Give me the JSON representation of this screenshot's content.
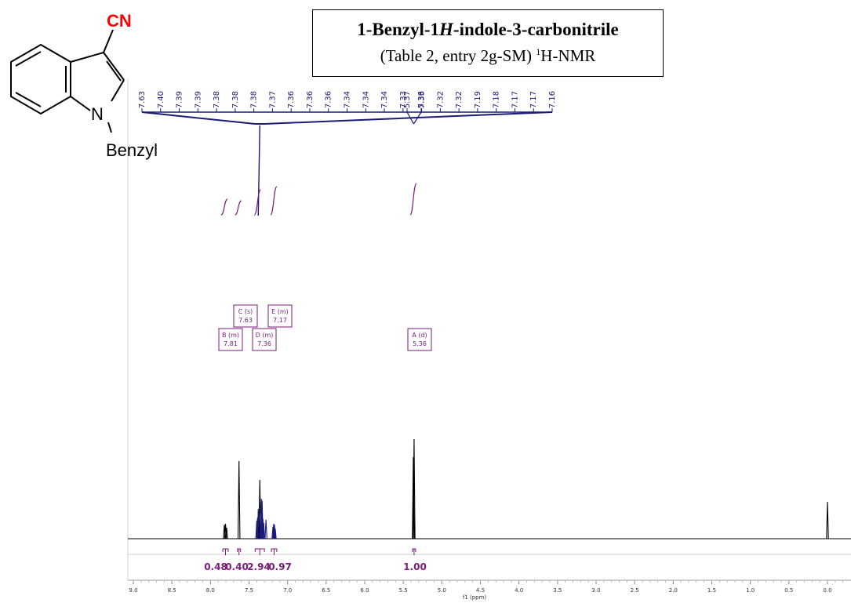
{
  "compound": {
    "name_part1": "1-Benzyl-1",
    "name_italic": "H",
    "name_part2": "-indole-3-carbonitrile",
    "subtitle_part1": "(Table 2, entry 2g-SM) ",
    "subtitle_sup": "1",
    "subtitle_part2": "H-NMR",
    "structure_labels": {
      "nitrile": "CN",
      "nitrogen": "N",
      "substituent": "Benzyl"
    }
  },
  "colors": {
    "peak_labels": "#1a1a7a",
    "multiplets": "#7a1a7a",
    "nitrile": "#ff0000",
    "spectrum": "#000000"
  },
  "chart_data": {
    "type": "line",
    "xlabel": "f1 (ppm)",
    "xlim": [
      9.1,
      -0.25
    ],
    "x_ticks": [
      "9.0",
      "8.5",
      "8.0",
      "7.5",
      "7.0",
      "6.5",
      "6.0",
      "5.5",
      "5.0",
      "4.5",
      "4.0",
      "3.5",
      "3.0",
      "2.5",
      "2.0",
      "1.5",
      "1.0",
      "0.5",
      "0.0"
    ],
    "peak_labels": [
      "7.63",
      "7.40",
      "7.39",
      "7.39",
      "7.38",
      "7.38",
      "7.38",
      "7.37",
      "7.36",
      "7.36",
      "7.36",
      "7.34",
      "7.34",
      "7.34",
      "7.33",
      "7.33",
      "7.32",
      "7.32",
      "7.19",
      "7.18",
      "7.17",
      "7.17",
      "7.16",
      "5.37",
      "5.36"
    ],
    "multiplets": [
      {
        "label": "B (m)",
        "shift": "7.81",
        "ppm": 7.81
      },
      {
        "label": "C (s)",
        "shift": "7.63",
        "ppm": 7.63
      },
      {
        "label": "D (m)",
        "shift": "7.36",
        "ppm": 7.36
      },
      {
        "label": "E (m)",
        "shift": "7.17",
        "ppm": 7.17
      },
      {
        "label": "A (d)",
        "shift": "5.36",
        "ppm": 5.36
      }
    ],
    "integrations": [
      {
        "value": "0.48",
        "from": 7.84,
        "to": 7.77
      },
      {
        "value": "0.40",
        "from": 7.65,
        "to": 7.61
      },
      {
        "value": "2.94",
        "from": 7.42,
        "to": 7.3
      },
      {
        "value": "0.97",
        "from": 7.21,
        "to": 7.14
      },
      {
        "value": "1.00",
        "from": 5.38,
        "to": 5.34
      }
    ],
    "peaks": [
      {
        "ppm": 7.82,
        "height": 0.14
      },
      {
        "ppm": 7.805,
        "height": 0.15
      },
      {
        "ppm": 7.79,
        "height": 0.11
      },
      {
        "ppm": 7.63,
        "height": 0.78
      },
      {
        "ppm": 7.4,
        "height": 0.18
      },
      {
        "ppm": 7.39,
        "height": 0.21
      },
      {
        "ppm": 7.38,
        "height": 0.3
      },
      {
        "ppm": 7.37,
        "height": 0.26
      },
      {
        "ppm": 7.36,
        "height": 0.59
      },
      {
        "ppm": 7.35,
        "height": 0.25
      },
      {
        "ppm": 7.34,
        "height": 0.4
      },
      {
        "ppm": 7.33,
        "height": 0.38
      },
      {
        "ppm": 7.32,
        "height": 0.2
      },
      {
        "ppm": 7.31,
        "height": 0.16
      },
      {
        "ppm": 7.28,
        "height": 0.19
      },
      {
        "ppm": 7.19,
        "height": 0.12
      },
      {
        "ppm": 7.18,
        "height": 0.15
      },
      {
        "ppm": 7.17,
        "height": 0.14
      },
      {
        "ppm": 7.16,
        "height": 0.1
      },
      {
        "ppm": 5.37,
        "height": 0.82
      },
      {
        "ppm": 5.36,
        "height": 1.0
      },
      {
        "ppm": 0.0,
        "height": 0.37
      }
    ]
  }
}
